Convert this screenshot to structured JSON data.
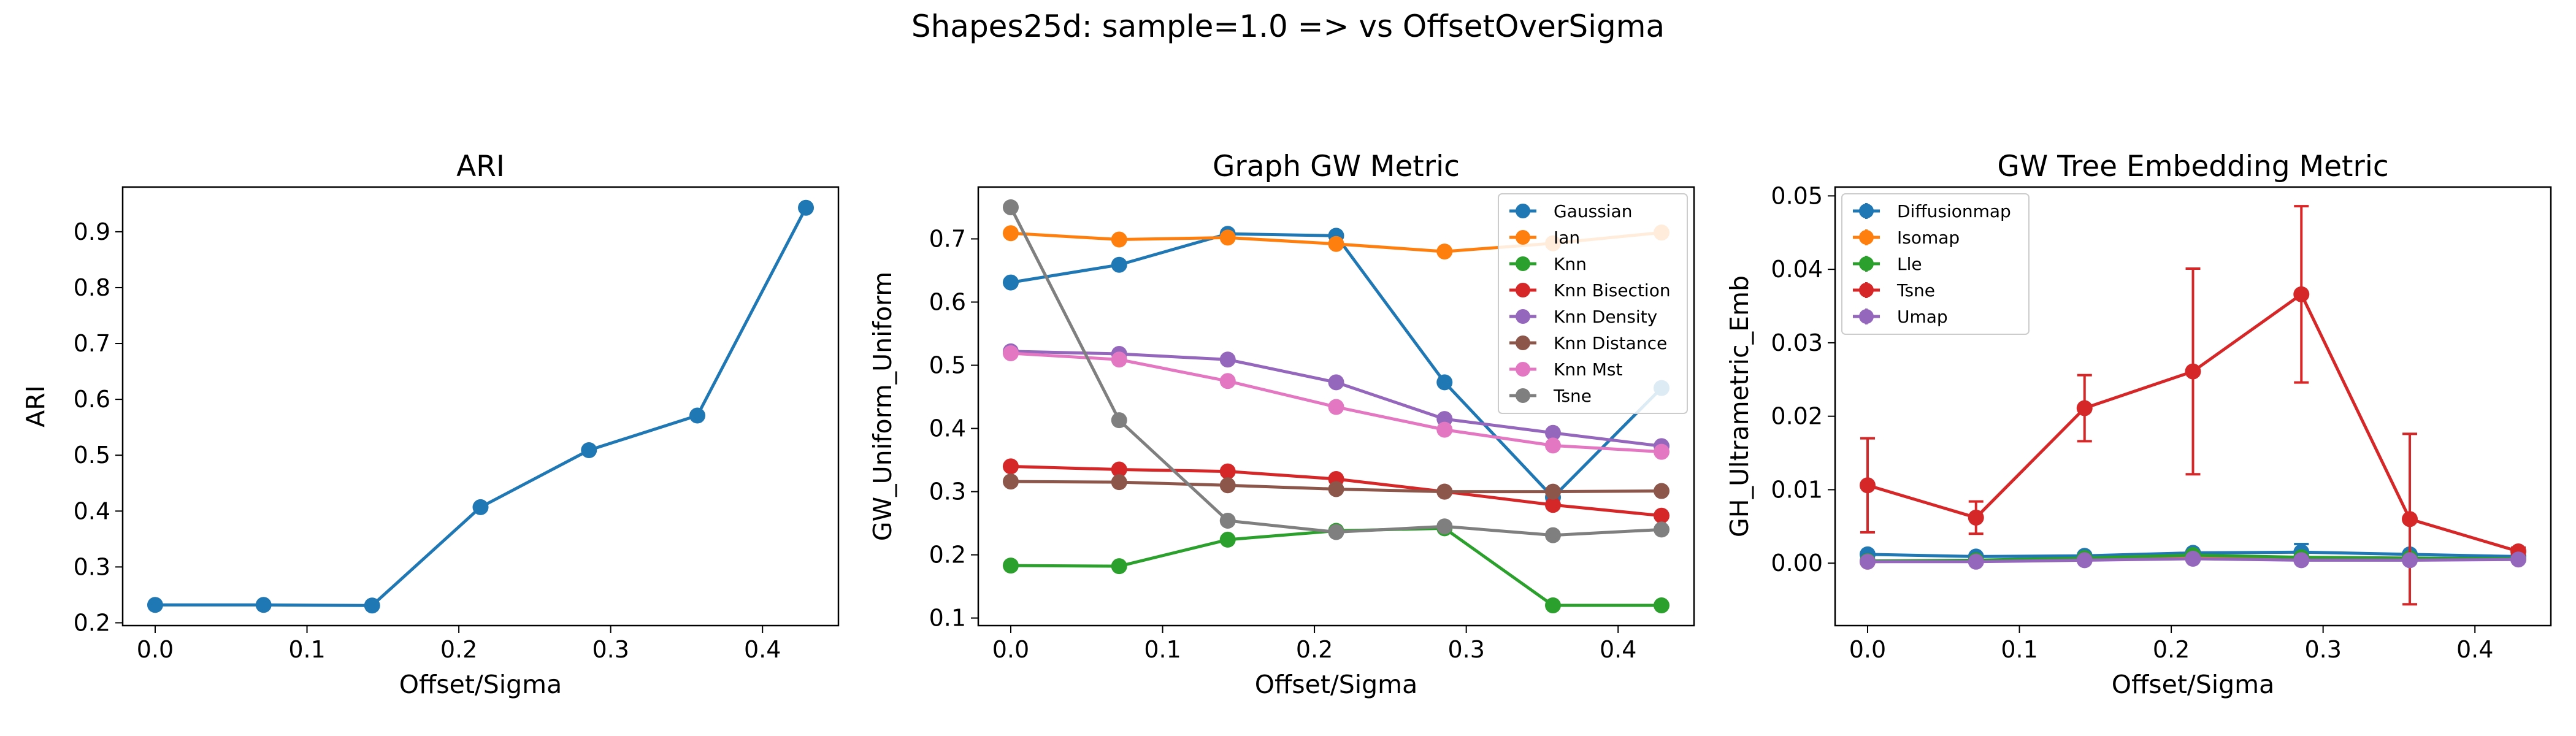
{
  "suptitle": "Shapes25d: sample=1.0 => vs OffsetOverSigma",
  "colors": {
    "blue": "#1f77b4",
    "orange": "#ff7f0e",
    "green": "#2ca02c",
    "red": "#d62728",
    "purple": "#9467bd",
    "brown": "#8c564b",
    "pink": "#e377c2",
    "gray": "#7f7f7f"
  },
  "chart_data": [
    {
      "type": "line",
      "title": "ARI",
      "xlabel": "Offset/Sigma",
      "ylabel": "ARI",
      "xlim": [
        -0.0214,
        0.45
      ],
      "ylim": [
        0.195,
        0.98
      ],
      "xticks": [
        0.0,
        0.1,
        0.2,
        0.3,
        0.4
      ],
      "xtick_labels": [
        "0.0",
        "0.1",
        "0.2",
        "0.3",
        "0.4"
      ],
      "yticks": [
        0.2,
        0.3,
        0.4,
        0.5,
        0.6,
        0.7,
        0.8,
        0.9
      ],
      "ytick_labels": [
        "0.2",
        "0.3",
        "0.4",
        "0.5",
        "0.6",
        "0.7",
        "0.8",
        "0.9"
      ],
      "x": [
        0.0,
        0.0714,
        0.1429,
        0.2143,
        0.2857,
        0.3571,
        0.4286
      ],
      "series": [
        {
          "color": "#1f77b4",
          "values": [
            0.232,
            0.232,
            0.231,
            0.407,
            0.509,
            0.571,
            0.943
          ]
        }
      ]
    },
    {
      "type": "line",
      "title": "Graph GW Metric",
      "xlabel": "Offset/Sigma",
      "ylabel": "GW_Uniform_Uniform",
      "xlim": [
        -0.0214,
        0.45
      ],
      "ylim": [
        0.088,
        0.782
      ],
      "xticks": [
        0.0,
        0.1,
        0.2,
        0.3,
        0.4
      ],
      "xtick_labels": [
        "0.0",
        "0.1",
        "0.2",
        "0.3",
        "0.4"
      ],
      "yticks": [
        0.1,
        0.2,
        0.3,
        0.4,
        0.5,
        0.6,
        0.7
      ],
      "ytick_labels": [
        "0.1",
        "0.2",
        "0.3",
        "0.4",
        "0.5",
        "0.6",
        "0.7"
      ],
      "legend_position": "top-right",
      "x": [
        0.0,
        0.0714,
        0.1429,
        0.2143,
        0.2857,
        0.3571,
        0.4286
      ],
      "series": [
        {
          "name": "Gaussian",
          "color": "#1f77b4",
          "values": [
            0.631,
            0.659,
            0.708,
            0.705,
            0.473,
            0.291,
            0.464
          ]
        },
        {
          "name": "Ian",
          "color": "#ff7f0e",
          "values": [
            0.709,
            0.699,
            0.702,
            0.692,
            0.68,
            0.693,
            0.71
          ]
        },
        {
          "name": "Knn",
          "color": "#2ca02c",
          "values": [
            0.183,
            0.182,
            0.224,
            0.238,
            0.242,
            0.12,
            0.12
          ]
        },
        {
          "name": "Knn Bisection",
          "color": "#d62728",
          "values": [
            0.34,
            0.335,
            0.332,
            0.32,
            0.3,
            0.279,
            0.262
          ]
        },
        {
          "name": "Knn Density",
          "color": "#9467bd",
          "values": [
            0.522,
            0.518,
            0.509,
            0.473,
            0.415,
            0.393,
            0.372
          ]
        },
        {
          "name": "Knn Distance",
          "color": "#8c564b",
          "values": [
            0.316,
            0.315,
            0.31,
            0.304,
            0.3,
            0.3,
            0.301
          ]
        },
        {
          "name": "Knn Mst",
          "color": "#e377c2",
          "values": [
            0.519,
            0.509,
            0.475,
            0.434,
            0.398,
            0.373,
            0.363
          ]
        },
        {
          "name": "Tsne",
          "color": "#7f7f7f",
          "values": [
            0.75,
            0.413,
            0.254,
            0.236,
            0.245,
            0.231,
            0.24
          ]
        }
      ]
    },
    {
      "type": "line",
      "title": "GW Tree Embedding Metric",
      "xlabel": "Offset/Sigma",
      "ylabel": "GH_Ultrametric_Emb",
      "xlim": [
        -0.0214,
        0.45
      ],
      "ylim": [
        -0.0085,
        0.0512
      ],
      "xticks": [
        0.0,
        0.1,
        0.2,
        0.3,
        0.4
      ],
      "xtick_labels": [
        "0.0",
        "0.1",
        "0.2",
        "0.3",
        "0.4"
      ],
      "yticks": [
        0.0,
        0.01,
        0.02,
        0.03,
        0.04,
        0.05
      ],
      "ytick_labels": [
        "0.00",
        "0.01",
        "0.02",
        "0.03",
        "0.04",
        "0.05"
      ],
      "legend_position": "top-left",
      "x": [
        0.0,
        0.0714,
        0.1429,
        0.2143,
        0.2857,
        0.3571,
        0.4286
      ],
      "series": [
        {
          "name": "Diffusionmap",
          "color": "#1f77b4",
          "values": [
            0.0012,
            0.0009,
            0.001,
            0.0014,
            0.0015,
            0.0012,
            0.0009
          ],
          "err": [
            0.0003,
            0.0002,
            0.0003,
            0.0003,
            0.0011,
            0.0003,
            0.0002
          ]
        },
        {
          "name": "Isomap",
          "color": "#ff7f0e",
          "values": [
            0.0002,
            0.0003,
            0.0005,
            0.0009,
            0.0006,
            0.0006,
            0.0006
          ],
          "err": [
            0.0001,
            0.0001,
            0.0001,
            0.0002,
            0.0002,
            0.0002,
            0.0001
          ]
        },
        {
          "name": "Lle",
          "color": "#2ca02c",
          "values": [
            0.0003,
            0.0004,
            0.0007,
            0.0011,
            0.0008,
            0.0007,
            0.0006
          ],
          "err": [
            0.0001,
            0.0001,
            0.0001,
            0.0002,
            0.0002,
            0.0002,
            0.0001
          ]
        },
        {
          "name": "Tsne",
          "color": "#d62728",
          "values": [
            0.0106,
            0.0062,
            0.0211,
            0.0261,
            0.0366,
            0.006,
            0.0016
          ],
          "err": [
            0.0064,
            0.0022,
            0.0045,
            0.014,
            0.012,
            0.0116,
            0.0005
          ]
        },
        {
          "name": "Umap",
          "color": "#9467bd",
          "values": [
            0.0002,
            0.0002,
            0.0004,
            0.0006,
            0.0004,
            0.0004,
            0.0005
          ],
          "err": [
            0.0001,
            0.0001,
            0.0001,
            0.0002,
            0.0001,
            0.0001,
            0.0001
          ]
        }
      ]
    }
  ]
}
